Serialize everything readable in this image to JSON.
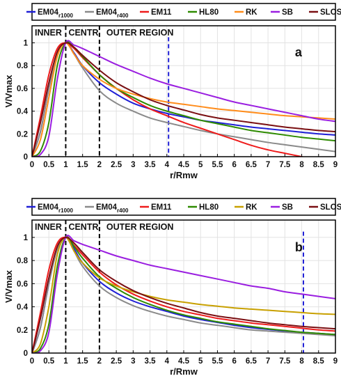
{
  "chart_data": [
    {
      "type": "line",
      "panel_label": "a",
      "xlabel": "r/Rmw",
      "ylabel": "V/Vmax",
      "xlim": [
        0,
        9
      ],
      "ylim": [
        0,
        1.15
      ],
      "xticks": [
        "0",
        "0.5",
        "1",
        "1.5",
        "2",
        "2.5",
        "3",
        "3.5",
        "4",
        "4.5",
        "5",
        "5.5",
        "6",
        "6.5",
        "7",
        "7.5",
        "8",
        "8.5",
        "9"
      ],
      "yticks": [
        "0",
        "0.2",
        "0.4",
        "0.6",
        "0.8",
        "1"
      ],
      "grid": true,
      "legend_position": "top",
      "regions": [
        "INNER",
        "CENTR",
        "OUTER REGION"
      ],
      "region_boundaries": [
        1,
        2
      ],
      "marker_line_x": 4.05,
      "series": [
        {
          "name": "EM04",
          "sub": "r1000",
          "color": "#1f1fd6",
          "x": [
            0,
            0.25,
            0.5,
            0.75,
            1,
            1.25,
            1.5,
            2,
            2.5,
            3,
            3.5,
            4,
            4.5,
            5,
            5.5,
            6,
            6.5,
            7,
            7.5,
            8,
            8.5,
            9
          ],
          "y": [
            0,
            0.22,
            0.6,
            0.9,
            1,
            0.91,
            0.8,
            0.65,
            0.55,
            0.47,
            0.42,
            0.38,
            0.35,
            0.32,
            0.3,
            0.28,
            0.26,
            0.245,
            0.23,
            0.215,
            0.2,
            0.19
          ]
        },
        {
          "name": "EM04",
          "sub": "r400",
          "color": "#8a8a8a",
          "x": [
            0,
            0.25,
            0.5,
            0.75,
            1,
            1.25,
            1.5,
            2,
            2.5,
            3,
            3.5,
            4,
            4.5,
            5,
            5.5,
            6,
            6.5,
            7,
            7.5,
            8,
            8.5,
            9
          ],
          "y": [
            0,
            0.22,
            0.6,
            0.9,
            1,
            0.9,
            0.78,
            0.58,
            0.47,
            0.4,
            0.34,
            0.3,
            0.265,
            0.23,
            0.2,
            0.175,
            0.15,
            0.125,
            0.105,
            0.085,
            0.065,
            0.045
          ]
        },
        {
          "name": "EM11",
          "sub": "",
          "color": "#ee1b1b",
          "x": [
            0,
            0.25,
            0.5,
            0.75,
            1,
            1.25,
            1.5,
            2,
            2.5,
            3,
            3.5,
            4,
            4.5,
            5,
            5.5,
            6,
            6.5,
            7,
            7.5,
            8,
            8.5,
            9
          ],
          "y": [
            0,
            0.35,
            0.72,
            0.95,
            1,
            0.95,
            0.87,
            0.72,
            0.6,
            0.5,
            0.42,
            0.36,
            0.3,
            0.25,
            0.2,
            0.15,
            0.1,
            0.06,
            0.03,
            0.0,
            -0.03,
            -0.06
          ]
        },
        {
          "name": "HL80",
          "sub": "",
          "color": "#2e8b00",
          "x": [
            0,
            0.25,
            0.5,
            0.75,
            1,
            1.25,
            1.5,
            2,
            2.5,
            3,
            3.5,
            4,
            4.5,
            5,
            5.5,
            6,
            6.5,
            7,
            7.5,
            8,
            8.5,
            9
          ],
          "y": [
            0,
            0.05,
            0.3,
            0.8,
            1,
            0.96,
            0.88,
            0.72,
            0.6,
            0.52,
            0.45,
            0.4,
            0.36,
            0.32,
            0.29,
            0.26,
            0.23,
            0.21,
            0.19,
            0.17,
            0.155,
            0.14
          ]
        },
        {
          "name": "RK",
          "sub": "",
          "color": "#ff8c1a",
          "x": [
            0,
            0.25,
            0.5,
            0.75,
            1,
            1.25,
            1.5,
            2,
            2.5,
            3,
            3.5,
            4,
            4.5,
            5,
            5.5,
            6,
            6.5,
            7,
            7.5,
            8,
            8.5,
            9
          ],
          "y": [
            0,
            0.15,
            0.52,
            0.88,
            1,
            0.9,
            0.8,
            0.68,
            0.6,
            0.55,
            0.51,
            0.48,
            0.46,
            0.44,
            0.42,
            0.405,
            0.39,
            0.375,
            0.36,
            0.35,
            0.34,
            0.33
          ]
        },
        {
          "name": "SB",
          "sub": "",
          "color": "#9a1ee0",
          "x": [
            0,
            0.25,
            0.5,
            0.75,
            1,
            1.25,
            1.5,
            2,
            2.5,
            3,
            3.5,
            4,
            4.5,
            5,
            5.5,
            6,
            6.5,
            7,
            7.5,
            8,
            8.5,
            9
          ],
          "y": [
            0,
            0.02,
            0.18,
            0.68,
            1,
            0.98,
            0.95,
            0.88,
            0.81,
            0.75,
            0.69,
            0.64,
            0.6,
            0.56,
            0.52,
            0.48,
            0.45,
            0.42,
            0.39,
            0.36,
            0.33,
            0.31
          ]
        },
        {
          "name": "SLOSH",
          "sub": "",
          "color": "#7a0f12",
          "x": [
            0,
            0.25,
            0.5,
            0.75,
            1,
            1.25,
            1.5,
            2,
            2.5,
            3,
            3.5,
            4,
            4.5,
            5,
            5.5,
            6,
            6.5,
            7,
            7.5,
            8,
            8.5,
            9
          ],
          "y": [
            0,
            0.3,
            0.65,
            0.92,
            1,
            0.96,
            0.89,
            0.76,
            0.65,
            0.57,
            0.5,
            0.45,
            0.41,
            0.37,
            0.34,
            0.32,
            0.3,
            0.28,
            0.26,
            0.245,
            0.23,
            0.22
          ]
        }
      ]
    },
    {
      "type": "line",
      "panel_label": "b",
      "xlabel": "r/Rmw",
      "ylabel": "V/Vmax",
      "xlim": [
        0,
        9
      ],
      "ylim": [
        0,
        1.15
      ],
      "xticks": [
        "0",
        "0.5",
        "1",
        "1.5",
        "2",
        "2.5",
        "3",
        "3.5",
        "4",
        "4.5",
        "5",
        "5.5",
        "6",
        "6.5",
        "7",
        "7.5",
        "8",
        "8.5",
        "9"
      ],
      "yticks": [
        "0",
        "0.2",
        "0.4",
        "0.6",
        "0.8",
        "1"
      ],
      "grid": true,
      "legend_position": "top",
      "regions": [
        "INNER",
        "CENTR",
        "OUTER REGION"
      ],
      "region_boundaries": [
        1,
        2
      ],
      "marker_line_x": 8.05,
      "series": [
        {
          "name": "EM04",
          "sub": "r1000",
          "color": "#1f1fd6",
          "x": [
            0,
            0.25,
            0.5,
            0.75,
            1,
            1.25,
            1.5,
            2,
            2.5,
            3,
            3.5,
            4,
            4.5,
            5,
            5.5,
            6,
            6.5,
            7,
            7.5,
            8,
            8.5,
            9
          ],
          "y": [
            0,
            0.22,
            0.6,
            0.9,
            1,
            0.9,
            0.78,
            0.62,
            0.52,
            0.45,
            0.4,
            0.36,
            0.32,
            0.29,
            0.265,
            0.24,
            0.22,
            0.205,
            0.19,
            0.18,
            0.17,
            0.16
          ]
        },
        {
          "name": "EM04",
          "sub": "r400",
          "color": "#8a8a8a",
          "x": [
            0,
            0.25,
            0.5,
            0.75,
            1,
            1.25,
            1.5,
            2,
            2.5,
            3,
            3.5,
            4,
            4.5,
            5,
            5.5,
            6,
            6.5,
            7,
            7.5,
            8,
            8.5,
            9
          ],
          "y": [
            0,
            0.22,
            0.6,
            0.9,
            1,
            0.88,
            0.75,
            0.58,
            0.48,
            0.41,
            0.36,
            0.32,
            0.29,
            0.26,
            0.24,
            0.22,
            0.2,
            0.19,
            0.18,
            0.17,
            0.16,
            0.15
          ]
        },
        {
          "name": "EM11",
          "sub": "",
          "color": "#ee1b1b",
          "x": [
            0,
            0.25,
            0.5,
            0.75,
            1,
            1.25,
            1.5,
            2,
            2.5,
            3,
            3.5,
            4,
            4.5,
            5,
            5.5,
            6,
            6.5,
            7,
            7.5,
            8,
            8.5,
            9
          ],
          "y": [
            0,
            0.35,
            0.72,
            0.95,
            1,
            0.93,
            0.85,
            0.7,
            0.59,
            0.51,
            0.45,
            0.4,
            0.36,
            0.33,
            0.3,
            0.28,
            0.26,
            0.245,
            0.23,
            0.215,
            0.2,
            0.19
          ]
        },
        {
          "name": "HL80",
          "sub": "",
          "color": "#2e8b00",
          "x": [
            0,
            0.25,
            0.5,
            0.75,
            1,
            1.25,
            1.5,
            2,
            2.5,
            3,
            3.5,
            4,
            4.5,
            5,
            5.5,
            6,
            6.5,
            7,
            7.5,
            8,
            8.5,
            9
          ],
          "y": [
            0,
            0.04,
            0.25,
            0.75,
            1,
            0.92,
            0.82,
            0.66,
            0.56,
            0.48,
            0.42,
            0.37,
            0.33,
            0.3,
            0.27,
            0.25,
            0.23,
            0.21,
            0.195,
            0.18,
            0.17,
            0.16
          ]
        },
        {
          "name": "RK",
          "sub": "",
          "color": "#c8a000",
          "x": [
            0,
            0.25,
            0.5,
            0.75,
            1,
            1.25,
            1.5,
            2,
            2.5,
            3,
            3.5,
            4,
            4.5,
            5,
            5.5,
            6,
            6.5,
            7,
            7.5,
            8,
            8.5,
            9
          ],
          "y": [
            0,
            0.08,
            0.4,
            0.85,
            1,
            0.88,
            0.78,
            0.65,
            0.58,
            0.53,
            0.49,
            0.46,
            0.44,
            0.42,
            0.405,
            0.39,
            0.38,
            0.37,
            0.36,
            0.35,
            0.34,
            0.335
          ]
        },
        {
          "name": "SB",
          "sub": "",
          "color": "#9a1ee0",
          "x": [
            0,
            0.25,
            0.5,
            0.75,
            1,
            1.25,
            1.5,
            2,
            2.5,
            3,
            3.5,
            4,
            4.5,
            5,
            5.5,
            6,
            6.5,
            7,
            7.5,
            8,
            8.5,
            9
          ],
          "y": [
            0,
            0.02,
            0.18,
            0.68,
            1,
            0.97,
            0.94,
            0.89,
            0.84,
            0.8,
            0.76,
            0.73,
            0.7,
            0.67,
            0.64,
            0.61,
            0.58,
            0.56,
            0.53,
            0.51,
            0.49,
            0.47
          ]
        },
        {
          "name": "SLOSH",
          "sub": "",
          "color": "#7a0f12",
          "x": [
            0,
            0.25,
            0.5,
            0.75,
            1,
            1.25,
            1.5,
            2,
            2.5,
            3,
            3.5,
            4,
            4.5,
            5,
            5.5,
            6,
            6.5,
            7,
            7.5,
            8,
            8.5,
            9
          ],
          "y": [
            0,
            0.3,
            0.65,
            0.92,
            1,
            0.95,
            0.87,
            0.72,
            0.62,
            0.54,
            0.48,
            0.43,
            0.39,
            0.35,
            0.32,
            0.3,
            0.28,
            0.26,
            0.245,
            0.23,
            0.22,
            0.21
          ]
        }
      ]
    }
  ]
}
